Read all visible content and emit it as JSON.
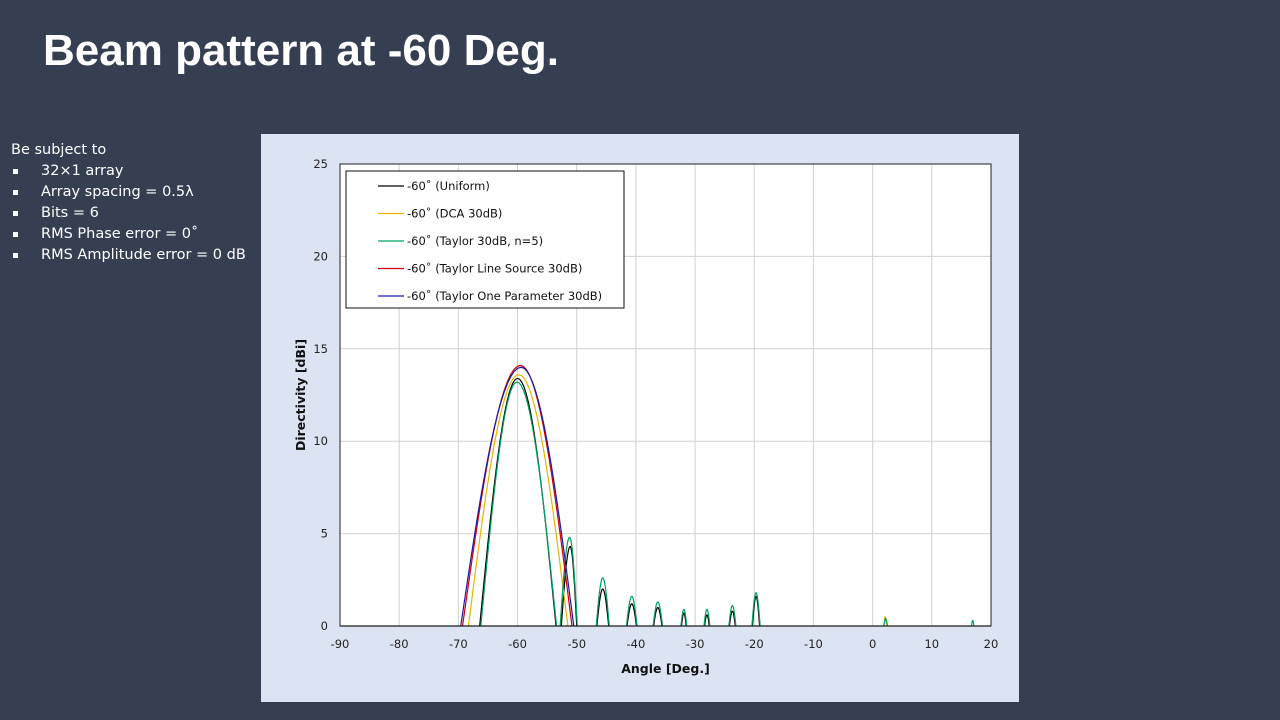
{
  "slide": {
    "title": "Beam pattern at -60 Deg."
  },
  "conditions": {
    "heading": "Be subject to",
    "items": [
      "32×1 array",
      "Array spacing = 0.5λ",
      "Bits = 6",
      "RMS Phase error = 0˚",
      "RMS Amplitude error = 0 dB"
    ]
  },
  "chart_data": {
    "type": "line",
    "xlabel": "Angle  [Deg.]",
    "ylabel": "Directivity  [dBi]",
    "xlim": [
      -90,
      20
    ],
    "ylim": [
      0,
      25
    ],
    "xticks": [
      -90,
      -80,
      -70,
      -60,
      -50,
      -40,
      -30,
      -20,
      -10,
      0,
      10,
      20
    ],
    "yticks": [
      0,
      5,
      10,
      15,
      20,
      25
    ],
    "grid": true,
    "legend_position": "top-left",
    "series": [
      {
        "name": "-60˚ (Uniform)",
        "color": "#000000",
        "lobes": [
          {
            "start": -66.4,
            "end": -53.5,
            "peak_x": -60.0,
            "peak": 13.4
          },
          {
            "start": -52.6,
            "end": -50.0,
            "peak_x": -51.1,
            "peak": 4.3
          },
          {
            "start": -46.6,
            "end": -44.6,
            "peak_x": -45.6,
            "peak": 2.0
          },
          {
            "start": -41.5,
            "end": -39.9,
            "peak_x": -40.7,
            "peak": 1.2
          },
          {
            "start": -37.0,
            "end": -35.6,
            "peak_x": -36.3,
            "peak": 1.0
          },
          {
            "start": -32.3,
            "end": -31.5,
            "peak_x": -31.9,
            "peak": 0.7
          },
          {
            "start": -28.4,
            "end": -27.6,
            "peak_x": -28.0,
            "peak": 0.6
          },
          {
            "start": -24.2,
            "end": -23.2,
            "peak_x": -23.7,
            "peak": 0.8
          },
          {
            "start": -20.3,
            "end": -19.1,
            "peak_x": -19.7,
            "peak": 1.6
          }
        ]
      },
      {
        "name": "-60˚ (DCA 30dB)",
        "color": "#e8b400",
        "lobes": [
          {
            "start": -68.3,
            "end": -51.5,
            "peak_x": -59.8,
            "peak": 13.6
          },
          {
            "start": 1.9,
            "end": 2.4,
            "peak_x": 2.1,
            "peak": 0.5
          }
        ]
      },
      {
        "name": "-60˚ (Taylor 30dB, n=5)",
        "color": "#00a060",
        "lobes": [
          {
            "start": -66.2,
            "end": -53.4,
            "peak_x": -60.1,
            "peak": 13.2
          },
          {
            "start": -52.8,
            "end": -49.9,
            "peak_x": -51.2,
            "peak": 4.8
          },
          {
            "start": -46.7,
            "end": -44.5,
            "peak_x": -45.6,
            "peak": 2.6
          },
          {
            "start": -41.6,
            "end": -39.8,
            "peak_x": -40.7,
            "peak": 1.6
          },
          {
            "start": -37.1,
            "end": -35.5,
            "peak_x": -36.3,
            "peak": 1.3
          },
          {
            "start": -32.4,
            "end": -31.4,
            "peak_x": -31.9,
            "peak": 0.9
          },
          {
            "start": -28.5,
            "end": -27.5,
            "peak_x": -28.0,
            "peak": 0.9
          },
          {
            "start": -24.3,
            "end": -23.1,
            "peak_x": -23.7,
            "peak": 1.1
          },
          {
            "start": -20.4,
            "end": -19.0,
            "peak_x": -19.7,
            "peak": 1.8
          },
          {
            "start": 1.9,
            "end": 2.5,
            "peak_x": 2.2,
            "peak": 0.4
          },
          {
            "start": 16.7,
            "end": 17.1,
            "peak_x": 16.9,
            "peak": 0.3
          }
        ]
      },
      {
        "name": "-60˚ (Taylor Line Source 30dB)",
        "color": "#cc0000",
        "lobes": [
          {
            "start": -69.3,
            "end": -50.8,
            "peak_x": -59.5,
            "peak": 14.1
          }
        ]
      },
      {
        "name": "-60˚ (Taylor One Parameter 30dB)",
        "color": "#1a1aa6",
        "lobes": [
          {
            "start": -69.6,
            "end": -50.5,
            "peak_x": -59.4,
            "peak": 14.0
          }
        ]
      }
    ]
  }
}
